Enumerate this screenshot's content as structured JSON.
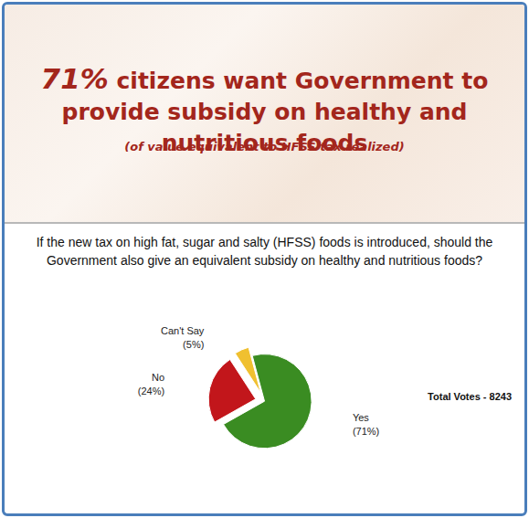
{
  "chart_data": {
    "type": "pie",
    "title": "71% citizens want Government to provide subsidy on healthy and nutritious foods",
    "subtitle": "(of value equivalent to HFSS tax realized)",
    "question": "If the new tax on high fat, sugar and salty (HFSS) foods is introduced, should the Government also give an equivalent subsidy on healthy and nutritious foods?",
    "annotation": "Total Votes - 8243",
    "categories": [
      "Yes",
      "No",
      "Can't Say"
    ],
    "values": [
      71,
      24,
      5
    ],
    "value_labels": [
      "(71%)",
      "(24%)",
      "(5%)"
    ],
    "colors": [
      "#3a8c22",
      "#c2161b",
      "#f0c030"
    ],
    "data_labels": true
  }
}
